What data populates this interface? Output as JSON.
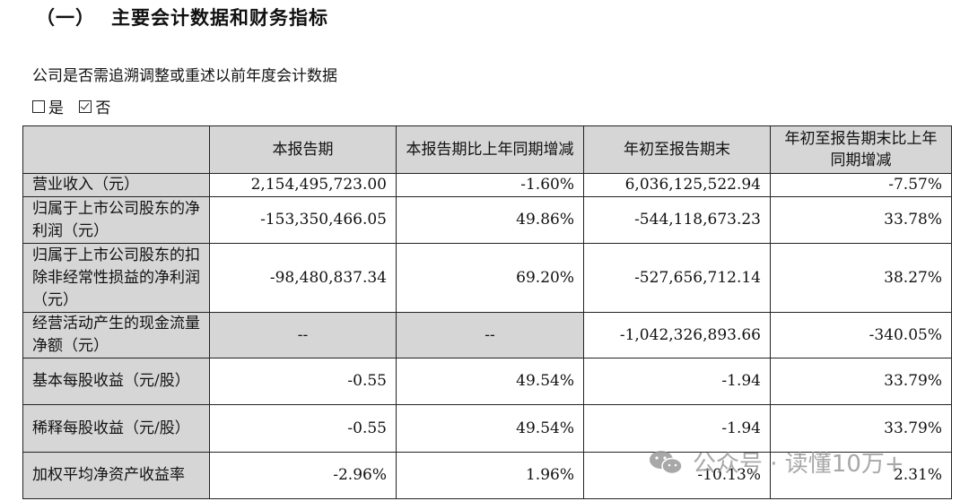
{
  "heading": {
    "number": "（一）",
    "title": "主要会计数据和财务指标"
  },
  "question": "公司是否需追溯调整或重述以前年度会计数据",
  "options": [
    {
      "label": "是",
      "checked": false
    },
    {
      "label": "否",
      "checked": true
    }
  ],
  "table": {
    "headers": [
      "",
      "本报告期",
      "本报告期比上年同期增减",
      "年初至报告期末",
      "年初至报告期末比上年同期增减"
    ],
    "rows": [
      {
        "label": "营业收入（元）",
        "cells": [
          "2,154,495,723.00",
          "-1.60%",
          "6,036,125,522.94",
          "-7.57%"
        ]
      },
      {
        "label": "归属于上市公司股东的净利润（元）",
        "cells": [
          "-153,350,466.05",
          "49.86%",
          "-544,118,673.23",
          "33.78%"
        ]
      },
      {
        "label": "归属于上市公司股东的扣除非经常性损益的净利润（元）",
        "cells": [
          "-98,480,837.34",
          "69.20%",
          "-527,656,712.14",
          "38.27%"
        ]
      },
      {
        "label": "经营活动产生的现金流量净额（元）",
        "cells": [
          "--",
          "--",
          "-1,042,326,893.66",
          "-340.05%"
        ]
      },
      {
        "label": "基本每股收益（元/股）",
        "cells": [
          "-0.55",
          "49.54%",
          "-1.94",
          "33.79%"
        ]
      },
      {
        "label": "稀释每股收益（元/股）",
        "cells": [
          "-0.55",
          "49.54%",
          "-1.94",
          "33.79%"
        ]
      },
      {
        "label": "加权平均净资产收益率",
        "cells": [
          "-2.96%",
          "1.96%",
          "-10.13%",
          "2.31%"
        ]
      }
    ]
  },
  "watermark": {
    "text": "公众号 · 读懂10万+",
    "icon": "wechat-icon"
  }
}
